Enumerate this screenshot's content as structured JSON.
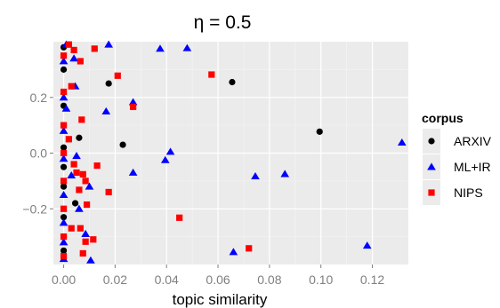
{
  "chart_data": {
    "type": "scatter",
    "title": "η = 0.5",
    "xlabel": "topic similarity",
    "ylabel": "",
    "xlim": [
      -0.004,
      0.134
    ],
    "ylim": [
      -0.4,
      0.4
    ],
    "xticks": [
      0.0,
      0.02,
      0.04,
      0.06,
      0.08,
      0.1,
      0.12
    ],
    "xtick_labels": [
      "0.00",
      "0.02",
      "0.04",
      "0.06",
      "0.08",
      "0.10",
      "0.12"
    ],
    "yticks": [
      0.2,
      0.0,
      -0.2
    ],
    "ytick_labels": [
      "0.2",
      "0.0",
      "−0.2"
    ],
    "grid": true,
    "legend_position": "right",
    "legend_title": "corpus",
    "panel_background": "#ebebeb",
    "grid_color": "#ffffff",
    "series": [
      {
        "name": "ARXIV",
        "marker": "circle",
        "color": "#000000",
        "points": [
          {
            "x": 0.0,
            "y": -0.35
          },
          {
            "x": 0.0,
            "y": -0.3
          },
          {
            "x": 0.0,
            "y": -0.23
          },
          {
            "x": 0.0,
            "y": -0.12
          },
          {
            "x": 0.0,
            "y": -0.05
          },
          {
            "x": 0.0,
            "y": 0.02
          },
          {
            "x": 0.0,
            "y": 0.1
          },
          {
            "x": 0.0,
            "y": 0.17
          },
          {
            "x": 0.0,
            "y": 0.3
          },
          {
            "x": 0.0,
            "y": 0.38
          },
          {
            "x": 0.0045,
            "y": -0.18
          },
          {
            "x": 0.006,
            "y": 0.055
          },
          {
            "x": 0.0175,
            "y": 0.25
          },
          {
            "x": 0.023,
            "y": 0.03
          },
          {
            "x": 0.0655,
            "y": 0.255
          },
          {
            "x": 0.0995,
            "y": 0.077
          }
        ]
      },
      {
        "name": "ML+IR",
        "marker": "triangle",
        "color": "#0000ff",
        "points": [
          {
            "x": 0.0,
            "y": -0.38
          },
          {
            "x": 0.0,
            "y": -0.32
          },
          {
            "x": 0.0,
            "y": -0.25
          },
          {
            "x": 0.0,
            "y": -0.15
          },
          {
            "x": 0.0,
            "y": -0.02
          },
          {
            "x": 0.0,
            "y": 0.08
          },
          {
            "x": 0.0,
            "y": 0.2
          },
          {
            "x": 0.0,
            "y": 0.33
          },
          {
            "x": 0.001,
            "y": 0.39
          },
          {
            "x": 0.001,
            "y": 0.16
          },
          {
            "x": 0.003,
            "y": -0.08
          },
          {
            "x": 0.004,
            "y": 0.34
          },
          {
            "x": 0.005,
            "y": -0.01
          },
          {
            "x": 0.006,
            "y": -0.2
          },
          {
            "x": 0.0045,
            "y": 0.24
          },
          {
            "x": 0.0085,
            "y": -0.29
          },
          {
            "x": 0.01,
            "y": -0.12
          },
          {
            "x": 0.0105,
            "y": -0.385
          },
          {
            "x": 0.0165,
            "y": 0.15
          },
          {
            "x": 0.0175,
            "y": 0.39
          },
          {
            "x": 0.027,
            "y": 0.183
          },
          {
            "x": 0.027,
            "y": -0.07
          },
          {
            "x": 0.0375,
            "y": 0.375
          },
          {
            "x": 0.0395,
            "y": -0.025
          },
          {
            "x": 0.0415,
            "y": 0.005
          },
          {
            "x": 0.048,
            "y": 0.377
          },
          {
            "x": 0.066,
            "y": -0.355
          },
          {
            "x": 0.0745,
            "y": -0.083
          },
          {
            "x": 0.086,
            "y": -0.075
          },
          {
            "x": 0.118,
            "y": -0.332
          },
          {
            "x": 0.1315,
            "y": 0.038
          }
        ]
      },
      {
        "name": "NIPS",
        "marker": "square",
        "color": "#ff0000",
        "points": [
          {
            "x": 0.0,
            "y": -0.37
          },
          {
            "x": 0.0,
            "y": -0.3
          },
          {
            "x": 0.0,
            "y": -0.2
          },
          {
            "x": 0.0,
            "y": -0.1
          },
          {
            "x": 0.0,
            "y": 0.0
          },
          {
            "x": 0.0,
            "y": 0.1
          },
          {
            "x": 0.0,
            "y": 0.22
          },
          {
            "x": 0.0,
            "y": 0.35
          },
          {
            "x": 0.002,
            "y": 0.39
          },
          {
            "x": 0.002,
            "y": 0.05
          },
          {
            "x": 0.003,
            "y": -0.27
          },
          {
            "x": 0.003,
            "y": 0.24
          },
          {
            "x": 0.004,
            "y": -0.04
          },
          {
            "x": 0.004,
            "y": 0.37
          },
          {
            "x": 0.0065,
            "y": 0.33
          },
          {
            "x": 0.005,
            "y": -0.07
          },
          {
            "x": 0.006,
            "y": -0.132
          },
          {
            "x": 0.0065,
            "y": -0.27
          },
          {
            "x": 0.007,
            "y": 0.12
          },
          {
            "x": 0.0075,
            "y": -0.076
          },
          {
            "x": 0.0085,
            "y": -0.1
          },
          {
            "x": 0.009,
            "y": -0.185
          },
          {
            "x": 0.0085,
            "y": -0.318
          },
          {
            "x": 0.0075,
            "y": -0.36
          },
          {
            "x": 0.0115,
            "y": -0.31
          },
          {
            "x": 0.012,
            "y": 0.375
          },
          {
            "x": 0.013,
            "y": -0.045
          },
          {
            "x": 0.0175,
            "y": -0.14
          },
          {
            "x": 0.021,
            "y": 0.278
          },
          {
            "x": 0.027,
            "y": 0.166
          },
          {
            "x": 0.045,
            "y": -0.232
          },
          {
            "x": 0.0575,
            "y": 0.282
          },
          {
            "x": 0.072,
            "y": -0.342
          }
        ]
      }
    ]
  }
}
